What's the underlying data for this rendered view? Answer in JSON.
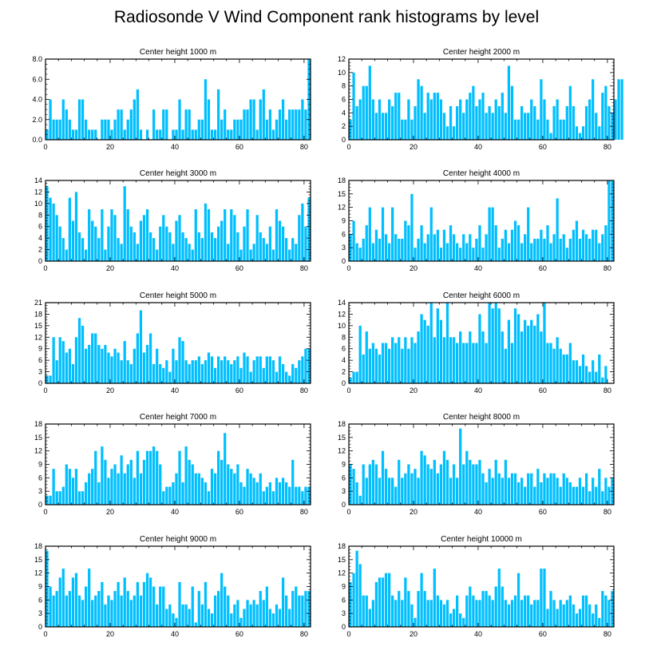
{
  "title": "Radiosonde V Wind Component rank histograms by level",
  "bar_color": "#00bfff",
  "chart_data": [
    {
      "type": "bar",
      "title": "Center height 1000 m",
      "xlabel": "",
      "ylabel": "",
      "xlim": [
        0,
        82
      ],
      "ylim": [
        0,
        8
      ],
      "x_ticks": [
        0,
        20,
        40,
        60,
        80
      ],
      "y_ticks": [
        0,
        2,
        4,
        6,
        8
      ],
      "y_tick_labels": [
        "0.0",
        "2.0",
        "4.0",
        "6.0",
        "8.0"
      ],
      "values": [
        1,
        4,
        2,
        2,
        2,
        4,
        3,
        2,
        1,
        1,
        4,
        4,
        2,
        1,
        1,
        1,
        0,
        2,
        2,
        2,
        1,
        2,
        3,
        3,
        1,
        2,
        3,
        4,
        5,
        1,
        0,
        1,
        0,
        3,
        1,
        1,
        3,
        3,
        0,
        1,
        1,
        4,
        1,
        3,
        3,
        1,
        1,
        2,
        2,
        6,
        4,
        1,
        1,
        5,
        2,
        3,
        1,
        1,
        2,
        2,
        2,
        3,
        3,
        4,
        4,
        1,
        4,
        5,
        2,
        3,
        1,
        2,
        3,
        4,
        2,
        3,
        3,
        3,
        3,
        4,
        3,
        8
      ]
    },
    {
      "type": "bar",
      "title": "Center height 2000 m",
      "xlabel": "",
      "ylabel": "",
      "xlim": [
        0,
        82
      ],
      "ylim": [
        0,
        12
      ],
      "x_ticks": [
        0,
        20,
        40,
        60,
        80
      ],
      "y_ticks": [
        0,
        2,
        4,
        6,
        8,
        10,
        12
      ],
      "y_tick_labels": [
        "0",
        "2",
        "4",
        "6",
        "8",
        "10",
        "12"
      ],
      "values": [
        3,
        10,
        5,
        6,
        8,
        8,
        11,
        6,
        4,
        6,
        4,
        4,
        6,
        5,
        7,
        7,
        3,
        3,
        6,
        3,
        5,
        9,
        8,
        4,
        7,
        6,
        7,
        7,
        6,
        4,
        2,
        5,
        2,
        5,
        6,
        4,
        6,
        7,
        8,
        5,
        6,
        7,
        4,
        5,
        4,
        6,
        5,
        7,
        4,
        11,
        8,
        3,
        3,
        5,
        4,
        4,
        6,
        5,
        3,
        9,
        6,
        3,
        1,
        5,
        6,
        3,
        3,
        5,
        8,
        5,
        2,
        1,
        2,
        5,
        6,
        9,
        4,
        2,
        7,
        8,
        5,
        4,
        6,
        9,
        9
      ]
    },
    {
      "type": "bar",
      "title": "Center height 3000 m",
      "xlabel": "",
      "ylabel": "",
      "xlim": [
        0,
        82
      ],
      "ylim": [
        0,
        14
      ],
      "x_ticks": [
        0,
        20,
        40,
        60,
        80
      ],
      "y_ticks": [
        0,
        2,
        4,
        6,
        8,
        10,
        12,
        14
      ],
      "y_tick_labels": [
        "0",
        "2",
        "4",
        "6",
        "8",
        "10",
        "12",
        "14"
      ],
      "values": [
        13,
        11,
        10,
        8,
        6,
        4,
        2,
        11,
        7,
        12,
        5,
        4,
        2,
        9,
        7,
        6,
        4,
        9,
        2,
        6,
        9,
        8,
        4,
        3,
        13,
        9,
        6,
        5,
        3,
        7,
        8,
        9,
        5,
        4,
        2,
        6,
        8,
        6,
        5,
        3,
        7,
        8,
        5,
        4,
        3,
        2,
        9,
        5,
        4,
        10,
        9,
        5,
        4,
        6,
        7,
        9,
        3,
        9,
        8,
        5,
        2,
        6,
        9,
        2,
        3,
        8,
        5,
        4,
        3,
        6,
        2,
        9,
        7,
        6,
        4,
        2,
        4,
        3,
        8,
        10,
        6,
        11
      ]
    },
    {
      "type": "bar",
      "title": "Center height 4000 m",
      "xlabel": "",
      "ylabel": "",
      "xlim": [
        0,
        82
      ],
      "ylim": [
        0,
        18
      ],
      "x_ticks": [
        0,
        20,
        40,
        60,
        80
      ],
      "y_ticks": [
        0,
        3,
        6,
        9,
        12,
        15,
        18
      ],
      "y_tick_labels": [
        "0",
        "3",
        "6",
        "9",
        "12",
        "15",
        "18"
      ],
      "values": [
        6,
        9,
        4,
        3,
        5,
        8,
        12,
        4,
        7,
        5,
        12,
        6,
        4,
        12,
        6,
        5,
        5,
        9,
        8,
        15,
        3,
        5,
        8,
        4,
        6,
        12,
        6,
        7,
        3,
        7,
        4,
        8,
        6,
        4,
        3,
        6,
        4,
        6,
        3,
        5,
        8,
        3,
        6,
        12,
        12,
        8,
        3,
        5,
        7,
        4,
        7,
        9,
        8,
        4,
        6,
        12,
        4,
        5,
        5,
        7,
        5,
        8,
        4,
        6,
        14,
        5,
        6,
        3,
        5,
        7,
        9,
        5,
        7,
        6,
        5,
        7,
        7,
        4,
        6,
        8,
        18,
        18
      ]
    },
    {
      "type": "bar",
      "title": "Center height 5000 m",
      "xlabel": "",
      "ylabel": "",
      "xlim": [
        0,
        82
      ],
      "ylim": [
        0,
        21
      ],
      "x_ticks": [
        0,
        20,
        40,
        60,
        80
      ],
      "y_ticks": [
        0,
        3,
        6,
        9,
        12,
        15,
        18,
        21
      ],
      "y_tick_labels": [
        "0",
        "3",
        "6",
        "9",
        "12",
        "15",
        "18",
        "21"
      ],
      "values": [
        2,
        2,
        12,
        6,
        12,
        11,
        8,
        9,
        5,
        12,
        17,
        15,
        9,
        10,
        13,
        13,
        10,
        9,
        10,
        8,
        7,
        9,
        8,
        6,
        11,
        6,
        5,
        9,
        13,
        19,
        8,
        10,
        13,
        5,
        9,
        5,
        4,
        6,
        3,
        9,
        6,
        12,
        11,
        6,
        5,
        6,
        6,
        7,
        5,
        6,
        8,
        7,
        4,
        7,
        6,
        7,
        6,
        5,
        6,
        7,
        4,
        8,
        7,
        3,
        6,
        7,
        7,
        4,
        7,
        7,
        6,
        3,
        7,
        5,
        3,
        2,
        5,
        4,
        6,
        7,
        9,
        9
      ]
    },
    {
      "type": "bar",
      "title": "Center height 6000 m",
      "xlabel": "",
      "ylabel": "",
      "xlim": [
        0,
        82
      ],
      "ylim": [
        0,
        14
      ],
      "x_ticks": [
        0,
        20,
        40,
        60,
        80
      ],
      "y_ticks": [
        0,
        2,
        4,
        6,
        8,
        10,
        12,
        14
      ],
      "y_tick_labels": [
        "0",
        "2",
        "4",
        "6",
        "8",
        "10",
        "12",
        "14"
      ],
      "values": [
        1,
        2,
        2,
        10,
        5,
        9,
        6,
        7,
        6,
        5,
        7,
        7,
        6,
        8,
        7,
        8,
        6,
        8,
        6,
        8,
        7,
        9,
        12,
        11,
        10,
        14,
        8,
        13,
        11,
        8,
        14,
        8,
        8,
        7,
        9,
        7,
        7,
        9,
        7,
        7,
        12,
        9,
        7,
        14,
        13,
        14,
        13,
        9,
        6,
        11,
        7,
        13,
        12,
        9,
        11,
        10,
        11,
        10,
        12,
        9,
        14,
        7,
        7,
        6,
        8,
        6,
        5,
        5,
        7,
        4,
        4,
        3,
        5,
        3,
        2,
        4,
        2,
        5,
        1,
        3
      ]
    },
    {
      "type": "bar",
      "title": "Center height 7000 m",
      "xlabel": "",
      "ylabel": "",
      "xlim": [
        0,
        82
      ],
      "ylim": [
        0,
        18
      ],
      "x_ticks": [
        0,
        20,
        40,
        60,
        80
      ],
      "y_ticks": [
        0,
        3,
        6,
        9,
        12,
        15,
        18
      ],
      "y_tick_labels": [
        "0",
        "3",
        "6",
        "9",
        "12",
        "15",
        "18"
      ],
      "values": [
        2,
        2,
        8,
        3,
        3,
        4,
        9,
        8,
        6,
        8,
        3,
        3,
        5,
        7,
        8,
        12,
        5,
        13,
        10,
        6,
        8,
        9,
        7,
        11,
        7,
        9,
        10,
        6,
        12,
        7,
        10,
        12,
        12,
        13,
        12,
        9,
        3,
        4,
        4,
        5,
        7,
        12,
        5,
        13,
        10,
        9,
        7,
        7,
        6,
        5,
        3,
        8,
        7,
        12,
        10,
        16,
        9,
        8,
        7,
        9,
        5,
        4,
        8,
        7,
        6,
        5,
        7,
        3,
        4,
        5,
        3,
        6,
        5,
        6,
        5,
        4,
        10,
        4,
        4,
        3,
        4,
        4
      ]
    },
    {
      "type": "bar",
      "title": "Center height 8000 m",
      "xlabel": "",
      "ylabel": "",
      "xlim": [
        0,
        82
      ],
      "ylim": [
        0,
        18
      ],
      "x_ticks": [
        0,
        20,
        40,
        60,
        80
      ],
      "y_ticks": [
        0,
        3,
        6,
        9,
        12,
        15,
        18
      ],
      "y_tick_labels": [
        "0",
        "3",
        "6",
        "9",
        "12",
        "15",
        "18"
      ],
      "values": [
        9,
        8,
        5,
        2,
        9,
        6,
        9,
        10,
        9,
        6,
        12,
        8,
        6,
        6,
        4,
        10,
        6,
        7,
        9,
        7,
        8,
        6,
        12,
        11,
        9,
        8,
        10,
        7,
        9,
        12,
        10,
        6,
        9,
        6,
        17,
        9,
        12,
        10,
        9,
        9,
        10,
        7,
        5,
        8,
        6,
        10,
        7,
        6,
        10,
        6,
        7,
        7,
        5,
        6,
        4,
        7,
        7,
        4,
        8,
        5,
        7,
        6,
        7,
        7,
        6,
        4,
        7,
        6,
        5,
        4,
        4,
        6,
        4,
        7,
        3,
        6,
        4,
        8,
        3,
        6,
        4,
        6
      ]
    },
    {
      "type": "bar",
      "title": "Center height 9000 m",
      "xlabel": "",
      "ylabel": "",
      "xlim": [
        0,
        82
      ],
      "ylim": [
        0,
        18
      ],
      "x_ticks": [
        0,
        20,
        40,
        60,
        80
      ],
      "y_ticks": [
        0,
        3,
        6,
        9,
        12,
        15,
        18
      ],
      "y_tick_labels": [
        "0",
        "3",
        "6",
        "9",
        "12",
        "15",
        "18"
      ],
      "values": [
        17,
        9,
        7,
        8,
        11,
        13,
        7,
        8,
        11,
        12,
        7,
        6,
        9,
        13,
        6,
        7,
        8,
        10,
        5,
        7,
        6,
        8,
        10,
        7,
        11,
        8,
        6,
        7,
        10,
        7,
        10,
        12,
        11,
        9,
        5,
        9,
        9,
        4,
        5,
        3,
        2,
        10,
        5,
        5,
        4,
        9,
        1,
        8,
        5,
        10,
        4,
        3,
        7,
        8,
        12,
        9,
        7,
        3,
        5,
        6,
        2,
        4,
        6,
        5,
        6,
        5,
        8,
        6,
        9,
        4,
        3,
        5,
        4,
        11,
        7,
        4,
        8,
        9,
        7,
        7,
        8,
        8
      ]
    },
    {
      "type": "bar",
      "title": "Center height 10000 m",
      "xlabel": "",
      "ylabel": "",
      "xlim": [
        0,
        82
      ],
      "ylim": [
        0,
        18
      ],
      "x_ticks": [
        0,
        20,
        40,
        60,
        80
      ],
      "y_ticks": [
        0,
        3,
        6,
        9,
        12,
        15,
        18
      ],
      "y_tick_labels": [
        "0",
        "3",
        "6",
        "9",
        "12",
        "15",
        "18"
      ],
      "values": [
        10,
        12,
        17,
        14,
        7,
        7,
        4,
        6,
        10,
        11,
        11,
        12,
        12,
        7,
        6,
        8,
        6,
        11,
        8,
        5,
        2,
        8,
        12,
        8,
        6,
        6,
        13,
        7,
        6,
        5,
        6,
        3,
        4,
        7,
        3,
        2,
        7,
        9,
        7,
        6,
        6,
        8,
        8,
        7,
        6,
        9,
        13,
        9,
        6,
        5,
        6,
        7,
        12,
        6,
        7,
        7,
        5,
        6,
        6,
        13,
        13,
        4,
        8,
        6,
        4,
        6,
        5,
        6,
        7,
        5,
        3,
        4,
        7,
        7,
        5,
        3,
        5,
        2,
        8,
        7,
        6,
        8
      ]
    }
  ]
}
